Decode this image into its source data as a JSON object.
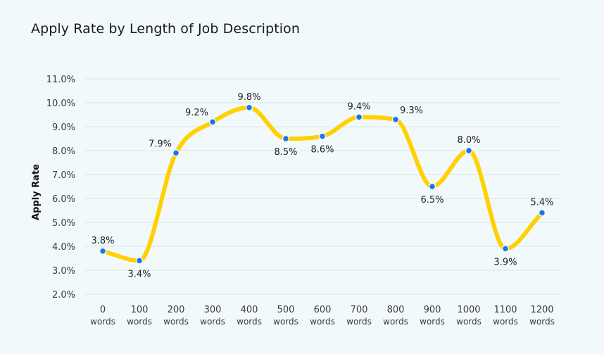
{
  "chart_data": {
    "type": "line",
    "title": "Apply Rate by Length of Job Description",
    "xlabel": "",
    "ylabel": "Apply Rate",
    "categories": [
      {
        "value": "0",
        "unit": "words"
      },
      {
        "value": "100",
        "unit": "words"
      },
      {
        "value": "200",
        "unit": "words"
      },
      {
        "value": "300",
        "unit": "words"
      },
      {
        "value": "400",
        "unit": "words"
      },
      {
        "value": "500",
        "unit": "words"
      },
      {
        "value": "600",
        "unit": "words"
      },
      {
        "value": "700",
        "unit": "words"
      },
      {
        "value": "800",
        "unit": "words"
      },
      {
        "value": "900",
        "unit": "words"
      },
      {
        "value": "1000",
        "unit": "words"
      },
      {
        "value": "1100",
        "unit": "words"
      },
      {
        "value": "1200",
        "unit": "words"
      }
    ],
    "series": [
      {
        "values": [
          3.8,
          3.4,
          7.9,
          9.2,
          9.8,
          8.5,
          8.6,
          9.4,
          9.3,
          6.5,
          8.0,
          3.9,
          5.4
        ],
        "labels": [
          "3.8%",
          "3.4%",
          "7.9%",
          "9.2%",
          "9.8%",
          "8.5%",
          "8.6%",
          "9.4%",
          "9.3%",
          "6.5%",
          "8.0%",
          "3.9%",
          "5.4%"
        ],
        "label_positions": [
          "above",
          "below",
          "left",
          "left",
          "above",
          "below",
          "below",
          "above",
          "right",
          "below",
          "above",
          "below",
          "above"
        ]
      }
    ],
    "yticks": [
      "2.0%",
      "3.0%",
      "4.0%",
      "5.0%",
      "6.0%",
      "7.0%",
      "8.0%",
      "9.0%",
      "10.0%",
      "11.0%"
    ],
    "ylim": [
      2,
      11
    ],
    "grid": true,
    "smooth": true,
    "line_color": "#ffd100",
    "marker_color": "#1a75e8",
    "grid_color": "#d8e2e6",
    "background": "#f2f9fb"
  }
}
